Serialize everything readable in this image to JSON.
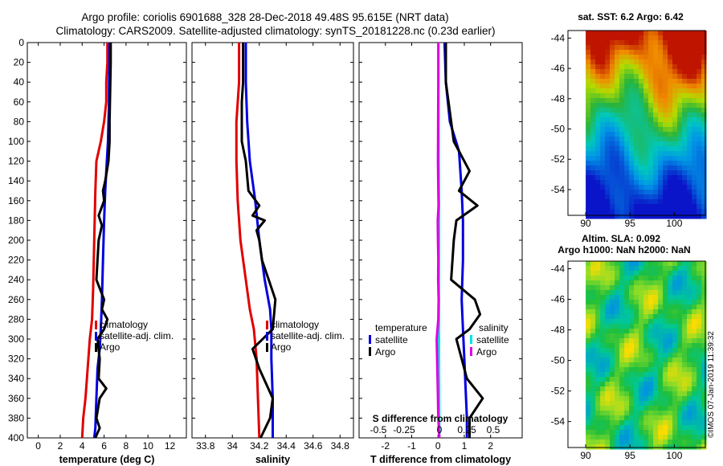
{
  "title_line1": "Argo profile: coriolis 6901688_328 28-Dec-2018 49.48S 95.615E (NRT data)",
  "title_line2": "Climatology: CARS2009. Satellite-adjusted climatology: synTS_20181228.nc (0.23d earlier)",
  "watermark": "©IMOS 07-Jan-2019 11:39:32",
  "colors": {
    "red": "#e00000",
    "blue": "#0000e0",
    "black": "#000000",
    "cyan": "#00e5e5",
    "magenta": "#e000e0"
  },
  "depth_axis": {
    "ticks": [
      0,
      20,
      40,
      60,
      80,
      100,
      120,
      140,
      160,
      180,
      200,
      220,
      240,
      260,
      280,
      300,
      320,
      340,
      360,
      380,
      400
    ],
    "range": [
      0,
      400
    ]
  },
  "chart_data": [
    {
      "type": "line",
      "name": "temperature",
      "xlabel": "temperature (deg C)",
      "xlim": [
        -1,
        13.5
      ],
      "xticks": [
        0,
        2,
        4,
        6,
        8,
        10,
        12
      ],
      "tick_labels": [
        "0",
        "2",
        "4",
        "6",
        "8",
        "10",
        "12"
      ],
      "legend": [
        "climatology",
        "satellite-adj. clim.",
        "Argo"
      ],
      "series": [
        {
          "name": "climatology",
          "color": "red",
          "points": [
            [
              6.3,
              0
            ],
            [
              6.3,
              20
            ],
            [
              6.2,
              40
            ],
            [
              6.2,
              60
            ],
            [
              6.0,
              80
            ],
            [
              5.7,
              100
            ],
            [
              5.3,
              120
            ],
            [
              5.2,
              150
            ],
            [
              5.1,
              200
            ],
            [
              5.0,
              250
            ],
            [
              4.9,
              280
            ],
            [
              4.7,
              300
            ],
            [
              4.5,
              330
            ],
            [
              4.3,
              360
            ],
            [
              4.1,
              380
            ],
            [
              4.0,
              400
            ]
          ]
        },
        {
          "name": "satellite-adj. clim.",
          "color": "blue",
          "points": [
            [
              6.5,
              0
            ],
            [
              6.5,
              20
            ],
            [
              6.45,
              40
            ],
            [
              6.45,
              60
            ],
            [
              6.4,
              80
            ],
            [
              6.35,
              100
            ],
            [
              6.3,
              110
            ],
            [
              6.2,
              130
            ],
            [
              6.1,
              150
            ],
            [
              6.0,
              180
            ],
            [
              5.9,
              220
            ],
            [
              5.8,
              260
            ],
            [
              5.7,
              290
            ],
            [
              5.6,
              310
            ],
            [
              5.4,
              330
            ],
            [
              5.3,
              360
            ],
            [
              5.2,
              390
            ],
            [
              5.1,
              400
            ]
          ]
        },
        {
          "name": "Argo",
          "color": "black",
          "points": [
            [
              6.6,
              0
            ],
            [
              6.6,
              20
            ],
            [
              6.55,
              50
            ],
            [
              6.5,
              80
            ],
            [
              6.5,
              100
            ],
            [
              6.4,
              120
            ],
            [
              6.1,
              140
            ],
            [
              5.9,
              150
            ],
            [
              6.0,
              160
            ],
            [
              5.5,
              175
            ],
            [
              5.8,
              185
            ],
            [
              5.5,
              200
            ],
            [
              5.4,
              220
            ],
            [
              5.3,
              240
            ],
            [
              6.0,
              260
            ],
            [
              5.8,
              270
            ],
            [
              6.3,
              280
            ],
            [
              6.0,
              290
            ],
            [
              5.4,
              300
            ],
            [
              5.6,
              320
            ],
            [
              5.5,
              340
            ],
            [
              6.2,
              350
            ],
            [
              5.6,
              360
            ],
            [
              5.3,
              380
            ],
            [
              5.6,
              390
            ],
            [
              5.2,
              400
            ]
          ]
        }
      ]
    },
    {
      "type": "line",
      "name": "salinity",
      "xlabel": "salinity",
      "xlim": [
        33.7,
        34.9
      ],
      "xticks": [
        33.8,
        34,
        34.2,
        34.4,
        34.6,
        34.8
      ],
      "tick_labels": [
        "33.8",
        "34",
        "34.2",
        "34.4",
        "34.6",
        "34.8"
      ],
      "legend": [
        "climatology",
        "satellite-adj. clim.",
        "Argo"
      ],
      "series": [
        {
          "name": "climatology",
          "color": "red",
          "points": [
            [
              34.05,
              0
            ],
            [
              34.05,
              40
            ],
            [
              34.03,
              80
            ],
            [
              34.03,
              120
            ],
            [
              34.04,
              160
            ],
            [
              34.06,
              200
            ],
            [
              34.1,
              240
            ],
            [
              34.13,
              270
            ],
            [
              34.16,
              290
            ],
            [
              34.18,
              320
            ],
            [
              34.19,
              360
            ],
            [
              34.2,
              400
            ]
          ]
        },
        {
          "name": "satellite-adj. clim.",
          "color": "blue",
          "points": [
            [
              34.1,
              0
            ],
            [
              34.1,
              40
            ],
            [
              34.11,
              80
            ],
            [
              34.13,
              120
            ],
            [
              34.17,
              160
            ],
            [
              34.2,
              200
            ],
            [
              34.24,
              240
            ],
            [
              34.28,
              270
            ],
            [
              34.29,
              290
            ],
            [
              34.29,
              320
            ],
            [
              34.3,
              360
            ],
            [
              34.3,
              400
            ]
          ]
        },
        {
          "name": "Argo",
          "color": "black",
          "points": [
            [
              34.08,
              0
            ],
            [
              34.08,
              40
            ],
            [
              34.07,
              60
            ],
            [
              34.07,
              100
            ],
            [
              34.1,
              120
            ],
            [
              34.12,
              150
            ],
            [
              34.2,
              165
            ],
            [
              34.15,
              175
            ],
            [
              34.24,
              180
            ],
            [
              34.18,
              190
            ],
            [
              34.2,
              200
            ],
            [
              34.22,
              220
            ],
            [
              34.27,
              240
            ],
            [
              34.32,
              260
            ],
            [
              34.3,
              290
            ],
            [
              34.15,
              310
            ],
            [
              34.2,
              330
            ],
            [
              34.3,
              360
            ],
            [
              34.28,
              380
            ],
            [
              34.21,
              400
            ]
          ]
        }
      ]
    },
    {
      "type": "line",
      "name": "difference",
      "xlabel": "T difference from climatology",
      "xlim": [
        -3,
        3.2
      ],
      "xticks": [
        -2,
        -1,
        0,
        1,
        2
      ],
      "tick_labels": [
        "-2",
        "-1",
        "0",
        "1",
        "2"
      ],
      "top_xlabel": "S difference from climatology",
      "top_ticks": [
        -0.5,
        -0.25,
        0,
        0.25,
        0.5
      ],
      "top_tick_labels": [
        "-0.5",
        "-0.25",
        "0",
        "0.25",
        "0.5"
      ],
      "legend_temperature_title": "temperature",
      "legend_salinity_title": "salinity",
      "legend_temperature": [
        "satellite",
        "Argo"
      ],
      "legend_salinity": [
        "satellite",
        "Argo"
      ],
      "series": [
        {
          "name": "T satellite",
          "color": "blue",
          "points": [
            [
              0.25,
              0
            ],
            [
              0.3,
              40
            ],
            [
              0.45,
              80
            ],
            [
              0.8,
              110
            ],
            [
              0.9,
              150
            ],
            [
              0.95,
              180
            ],
            [
              0.95,
              220
            ],
            [
              0.9,
              260
            ],
            [
              0.95,
              290
            ],
            [
              1.0,
              320
            ],
            [
              1.05,
              350
            ],
            [
              1.1,
              380
            ],
            [
              1.1,
              400
            ]
          ]
        },
        {
          "name": "T Argo",
          "color": "black",
          "points": [
            [
              0.3,
              0
            ],
            [
              0.3,
              40
            ],
            [
              0.4,
              60
            ],
            [
              0.6,
              100
            ],
            [
              1.2,
              130
            ],
            [
              0.8,
              150
            ],
            [
              1.5,
              165
            ],
            [
              0.7,
              180
            ],
            [
              0.6,
              200
            ],
            [
              0.5,
              240
            ],
            [
              1.4,
              260
            ],
            [
              1.6,
              275
            ],
            [
              1.2,
              290
            ],
            [
              0.7,
              300
            ],
            [
              0.9,
              320
            ],
            [
              1.1,
              340
            ],
            [
              1.7,
              360
            ],
            [
              1.2,
              380
            ],
            [
              1.2,
              400
            ]
          ]
        },
        {
          "name": "S satellite",
          "color": "cyan",
          "points": [
            [
              0.02,
              0
            ],
            [
              0.04,
              40
            ],
            [
              0.05,
              80
            ],
            [
              0.06,
              120
            ],
            [
              0.08,
              160
            ],
            [
              0.08,
              200
            ],
            [
              0.07,
              240
            ],
            [
              0.07,
              280
            ],
            [
              0.08,
              320
            ],
            [
              0.09,
              360
            ],
            [
              0.1,
              400
            ]
          ]
        },
        {
          "name": "S Argo",
          "color": "magenta",
          "points": [
            [
              0.03,
              0
            ],
            [
              0.02,
              40
            ],
            [
              0.01,
              80
            ],
            [
              0.0,
              120
            ],
            [
              0.02,
              150
            ],
            [
              0.04,
              165
            ],
            [
              -0.02,
              180
            ],
            [
              0.0,
              200
            ],
            [
              0.02,
              220
            ],
            [
              0.01,
              240
            ],
            [
              0.05,
              260
            ],
            [
              0.02,
              280
            ],
            [
              -0.1,
              300
            ],
            [
              -0.05,
              330
            ],
            [
              0.0,
              360
            ],
            [
              0.02,
              380
            ],
            [
              0.1,
              400
            ]
          ]
        }
      ]
    },
    {
      "type": "heatmap",
      "name": "sst-map",
      "title": "sat. SST: 6.2  Argo: 6.42",
      "xticks": [
        90,
        95,
        100
      ],
      "yticks": [
        -44,
        -46,
        -48,
        -50,
        -52,
        -54
      ],
      "xlim": [
        88,
        103.5
      ],
      "ylim": [
        -43.5,
        -55.7
      ]
    },
    {
      "type": "heatmap",
      "name": "sla-map",
      "title_line1": "Altim. SLA: 0.092",
      "title_line2": "Argo h1000: NaN  h2000: NaN",
      "xticks": [
        90,
        95,
        100
      ],
      "yticks": [
        -44,
        -46,
        -48,
        -50,
        -52,
        -54
      ],
      "xlim": [
        88,
        103.5
      ],
      "ylim": [
        -43.5,
        -55.7
      ]
    }
  ]
}
